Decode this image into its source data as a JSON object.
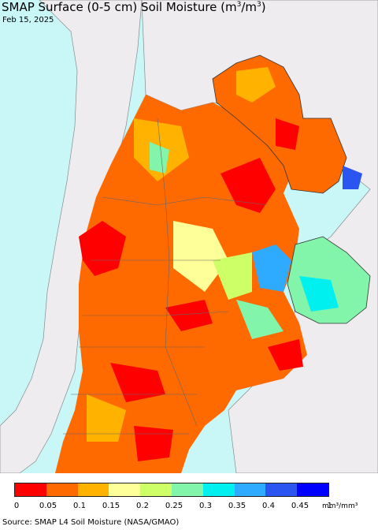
{
  "title": {
    "main": "SMAP Surface (0-5 cm) Soil Moisture (m",
    "sup1": "3",
    "mid": "/m",
    "sup2": "3",
    "end": ")"
  },
  "date": "Feb 15, 2025",
  "legend": {
    "colors": [
      "#ff0000",
      "#ff6a00",
      "#ffb200",
      "#ffff99",
      "#cdff66",
      "#82f5aa",
      "#00f0f0",
      "#2eaaff",
      "#2b55f0",
      "#0000ff"
    ],
    "ticks": [
      "0",
      "0.05",
      "0.1",
      "0.15",
      "0.2",
      "0.25",
      "0.3",
      "0.35",
      "0.4",
      "0.45",
      "1"
    ],
    "units": "mm³/mm³"
  },
  "source": "Source: SMAP L4 Soil Moisture (NASA/GMAO)",
  "map_colors": {
    "ocean": "#c9f7f8",
    "outside_land": "#efecf0",
    "border": "#555555"
  }
}
